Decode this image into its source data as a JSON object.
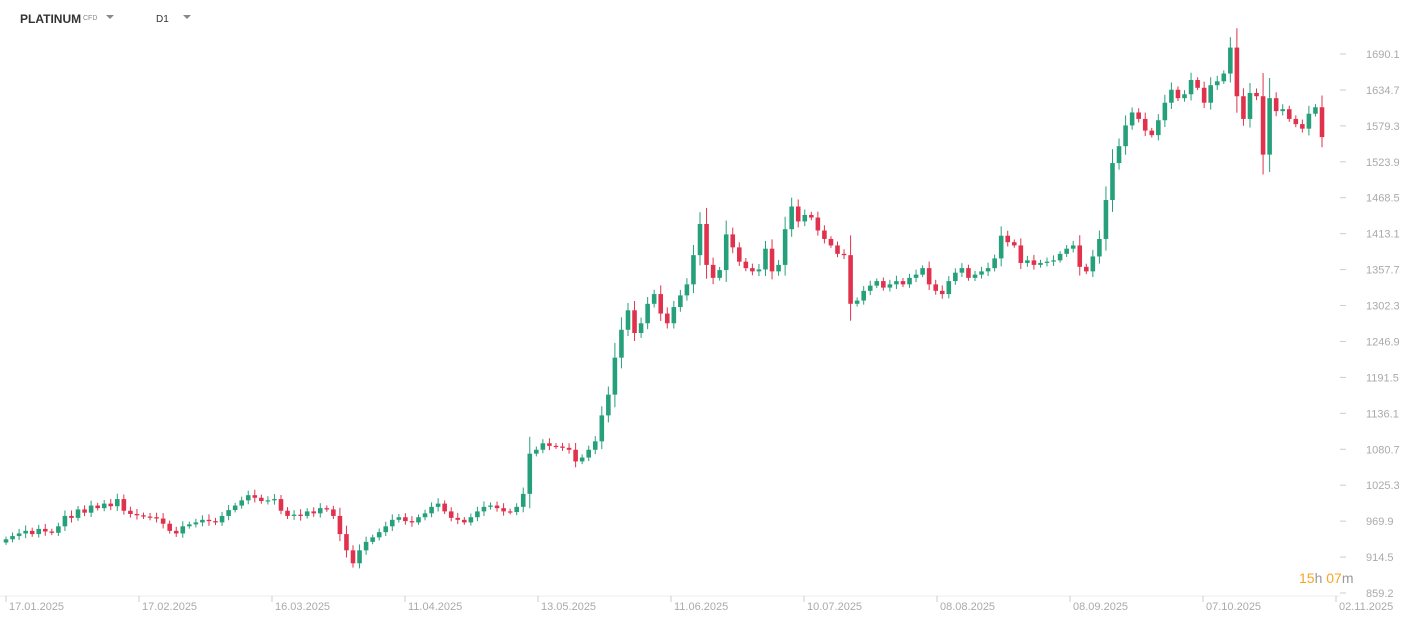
{
  "header": {
    "symbol": "PLATINUM",
    "symbol_type": "CFD",
    "timeframe": "D1"
  },
  "countdown": {
    "hours": "15",
    "h_unit": "h",
    "minutes": "07",
    "m_unit": "m"
  },
  "colors": {
    "up": "#26a07a",
    "down": "#e0324d",
    "axis_text": "#aaaaaa",
    "countdown": "#f5a623"
  },
  "chart_data": {
    "type": "candlestick",
    "y_ticks": [
      "1690.1",
      "1634.7",
      "1579.3",
      "1523.9",
      "1468.5",
      "1413.1",
      "1357.7",
      "1302.3",
      "1246.9",
      "1191.5",
      "1136.1",
      "1080.7",
      "1025.3",
      "969.9",
      "914.5",
      "859.2"
    ],
    "x_ticks": [
      "17.01.2025",
      "17.02.2025",
      "16.03.2025",
      "11.04.2025",
      "13.05.2025",
      "11.06.2025",
      "10.07.2025",
      "08.08.2025",
      "08.09.2025",
      "07.10.2025",
      "02.11.2025"
    ],
    "ylim": [
      859.2,
      1690.1
    ],
    "grid": false,
    "closes": [
      942,
      947,
      951,
      955,
      950,
      958,
      954,
      952,
      962,
      978,
      975,
      988,
      983,
      994,
      990,
      997,
      993,
      1004,
      986,
      981,
      979,
      977,
      976,
      974,
      966,
      955,
      951,
      962,
      965,
      968,
      972,
      970,
      968,
      978,
      987,
      994,
      1002,
      1010,
      1006,
      1001,
      1002,
      1004,
      986,
      978,
      980,
      978,
      985,
      982,
      990,
      988,
      978,
      950,
      925,
      905,
      925,
      938,
      945,
      953,
      962,
      972,
      976,
      970,
      968,
      976,
      982,
      992,
      997,
      985,
      975,
      972,
      968,
      976,
      985,
      992,
      994,
      990,
      985,
      984,
      992,
      1012,
      1074,
      1080,
      1090,
      1086,
      1085,
      1083,
      1080,
      1062,
      1068,
      1080,
      1093,
      1133,
      1165,
      1222,
      1265,
      1295,
      1260,
      1275,
      1305,
      1320,
      1290,
      1275,
      1300,
      1318,
      1335,
      1380,
      1428,
      1365,
      1345,
      1357,
      1412,
      1392,
      1370,
      1360,
      1355,
      1358,
      1390,
      1355,
      1365,
      1420,
      1455,
      1432,
      1442,
      1438,
      1418,
      1405,
      1395,
      1382,
      1380,
      1305,
      1310,
      1325,
      1333,
      1340,
      1330,
      1335,
      1340,
      1335,
      1345,
      1350,
      1360,
      1335,
      1325,
      1320,
      1340,
      1353,
      1360,
      1345,
      1350,
      1355,
      1360,
      1375,
      1410,
      1400,
      1395,
      1368,
      1372,
      1365,
      1368,
      1370,
      1372,
      1382,
      1390,
      1395,
      1362,
      1355,
      1378,
      1405,
      1465,
      1522,
      1548,
      1580,
      1600,
      1590,
      1572,
      1565,
      1588,
      1615,
      1635,
      1622,
      1628,
      1650,
      1638,
      1615,
      1642,
      1648,
      1660,
      1700,
      1625,
      1590,
      1630,
      1625,
      1535,
      1622,
      1602,
      1605,
      1590,
      1582,
      1575,
      1598,
      1608,
      1562
    ]
  }
}
